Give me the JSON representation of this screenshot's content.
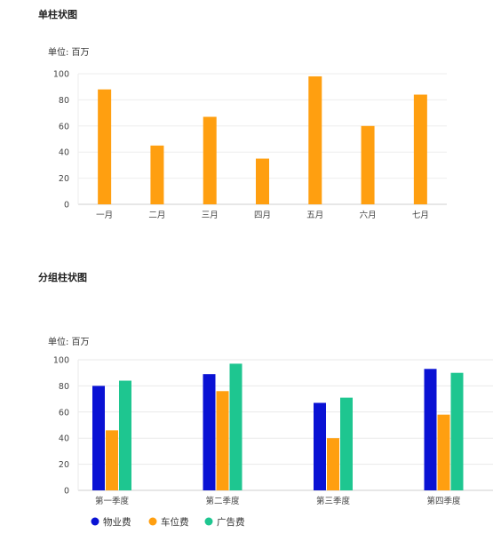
{
  "chart_data": [
    {
      "type": "bar",
      "title": "单柱状图",
      "unit_label": "单位: 百万",
      "categories": [
        "一月",
        "二月",
        "三月",
        "四月",
        "五月",
        "六月",
        "七月"
      ],
      "values": [
        88,
        45,
        67,
        35,
        98,
        60,
        84
      ],
      "ylim": [
        0,
        100
      ],
      "yticks": [
        "0",
        "20",
        "40",
        "60",
        "80",
        "100"
      ],
      "grid": true,
      "colors": {
        "bar": "#ff9f10"
      }
    },
    {
      "type": "bar",
      "title": "分组柱状图",
      "unit_label": "单位: 百万",
      "categories": [
        "第一季度",
        "第二季度",
        "第三季度",
        "第四季度"
      ],
      "series": [
        {
          "name": "物业费",
          "values": [
            80,
            89,
            67,
            93
          ],
          "color": "#0a12d4"
        },
        {
          "name": "车位费",
          "values": [
            46,
            76,
            40,
            58
          ],
          "color": "#ff9f10"
        },
        {
          "name": "广告费",
          "values": [
            84,
            97,
            71,
            90
          ],
          "color": "#1ec690"
        }
      ],
      "ylim": [
        0,
        100
      ],
      "yticks": [
        "0",
        "20",
        "40",
        "60",
        "80",
        "100"
      ],
      "grid": true,
      "legend_position": "bottom-left"
    }
  ]
}
